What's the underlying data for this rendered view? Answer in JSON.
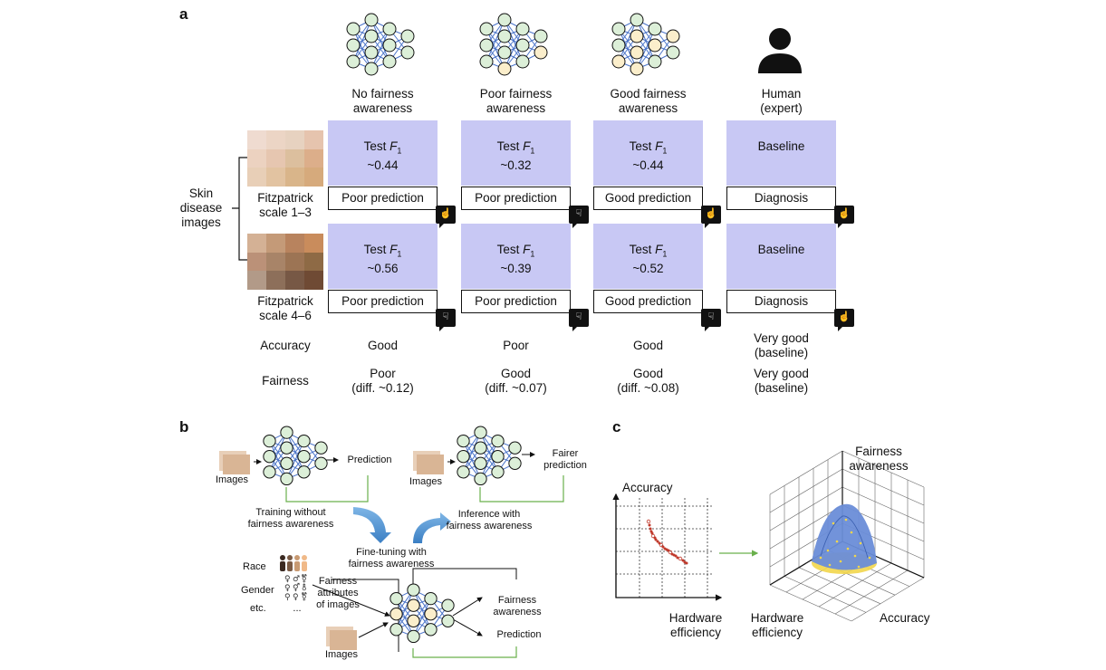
{
  "panels": {
    "a": "a",
    "b": "b",
    "c": "c"
  },
  "panel_a": {
    "columns": [
      {
        "title1": "No fairness",
        "title2": "awareness"
      },
      {
        "title1": "Poor fairness",
        "title2": "awareness"
      },
      {
        "title1": "Good fairness",
        "title2": "awareness"
      },
      {
        "title1": "Human",
        "title2": "(expert)"
      }
    ],
    "row_group_label": [
      "Skin",
      "disease",
      "images"
    ],
    "rows": [
      {
        "label1": "Fitzpatrick",
        "label2": "scale 1–3"
      },
      {
        "label1": "Fitzpatrick",
        "label2": "scale 4–6"
      }
    ],
    "cells": [
      [
        {
          "l1": "Test F",
          "sub": "1",
          "l2": "~0.44",
          "result": "Poor prediction",
          "thumb": "up"
        },
        {
          "l1": "Test F",
          "sub": "1",
          "l2": "~0.32",
          "result": "Poor prediction",
          "thumb": "down"
        },
        {
          "l1": "Test F",
          "sub": "1",
          "l2": "~0.44",
          "result": "Good prediction",
          "thumb": "up"
        },
        {
          "l1": "Baseline",
          "sub": "",
          "l2": "",
          "result": "Diagnosis",
          "thumb": "up"
        }
      ],
      [
        {
          "l1": "Test F",
          "sub": "1",
          "l2": "~0.56",
          "result": "Poor prediction",
          "thumb": "down"
        },
        {
          "l1": "Test F",
          "sub": "1",
          "l2": "~0.39",
          "result": "Poor prediction",
          "thumb": "down"
        },
        {
          "l1": "Test F",
          "sub": "1",
          "l2": "~0.52",
          "result": "Good prediction",
          "thumb": "down"
        },
        {
          "l1": "Baseline",
          "sub": "",
          "l2": "",
          "result": "Diagnosis",
          "thumb": "up"
        }
      ]
    ],
    "accuracy_label": "Accuracy",
    "fairness_label": "Fairness",
    "accuracy": [
      [
        "Good",
        ""
      ],
      [
        "Poor",
        ""
      ],
      [
        "Good",
        ""
      ],
      [
        "Very good",
        "(baseline)"
      ]
    ],
    "fairness": [
      [
        "Poor",
        "(diff. ~0.12)"
      ],
      [
        "Good",
        "(diff. ~0.07)"
      ],
      [
        "Good",
        "(diff. ~0.08)"
      ],
      [
        "Very good",
        "(baseline)"
      ]
    ]
  },
  "panel_b": {
    "images": "Images",
    "prediction": "Prediction",
    "fairer1": "Fairer",
    "fairer2": "prediction",
    "training1": "Training without",
    "training2": "fairness awareness",
    "inference1": "Inference with",
    "inference2": "fairness awareness",
    "finetune1": "Fine-tuning with",
    "finetune2": "fairness awareness",
    "race": "Race",
    "gender": "Gender",
    "etc": "etc.",
    "ellipsis": "...",
    "attr1": "Fairness",
    "attr2": "attributes",
    "attr3": "of images",
    "fa1": "Fairness",
    "fa2": "awareness",
    "prediction2": "Prediction"
  },
  "panel_c": {
    "accuracy": "Accuracy",
    "hw1": "Hardware",
    "hw2": "efficiency",
    "fa1": "Fairness",
    "fa2": "awareness",
    "accuracy3d": "Accuracy"
  },
  "colors": {
    "accent_box": "#c8c8f4",
    "node_green": "#dcefd8",
    "node_yellow": "#fbeecb",
    "edge_blue": "#4a74c9",
    "arrow_blue": "#5b9bd5",
    "green_line": "#6ab04c",
    "scatter_red": "#c0392b"
  },
  "icons": {
    "network": "neural-network-icon",
    "person": "person-icon",
    "thumb_up": "thumbs-up-icon",
    "thumb_down": "thumbs-down-icon"
  }
}
